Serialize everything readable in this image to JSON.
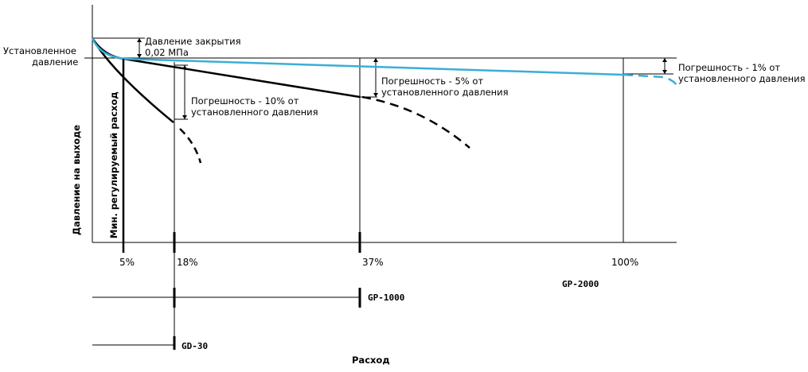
{
  "labels": {
    "setpoint_line1": "Установленное",
    "setpoint_line2": "давление",
    "closing_line1": "Давление закрытия",
    "closing_line2": "0,02 МПа",
    "err10_line1": "Погрешность - 10% от",
    "err10_line2": "установленного давления",
    "err5_line1": "Погрешность - 5% от",
    "err5_line2": "установленного давления",
    "err1_line1": "Погрешность - 1% от",
    "err1_line2": "установленного давления",
    "min_flow": "Мин. регулируемый расход",
    "y_axis": "Давление на выходе",
    "x_axis": "Расход"
  },
  "flow_marks": [
    "5%",
    "18%",
    "37%",
    "100%"
  ],
  "models": {
    "gd30": "GD-30",
    "gp1000": "GP-1000",
    "gp2000": "GP-2000"
  },
  "colors": {
    "black": "#000000",
    "blue": "#3aaed8"
  }
}
